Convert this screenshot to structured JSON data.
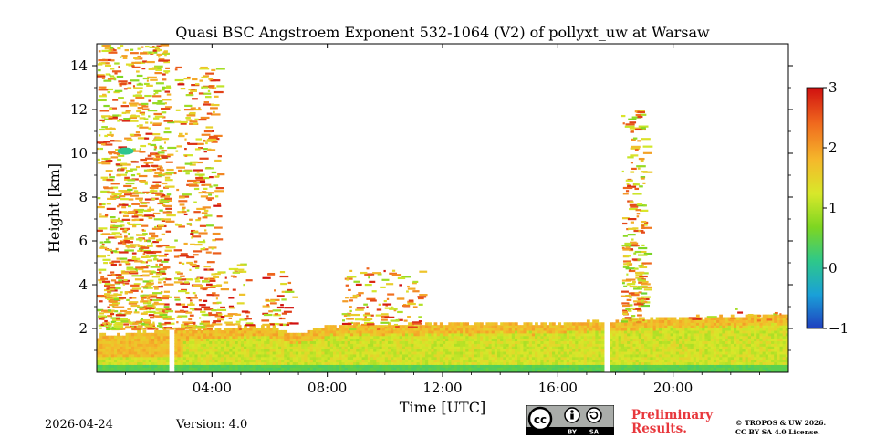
{
  "chart_data": {
    "type": "heatmap",
    "title": "Quasi BSC Angstroem Exponent 532-1064 (V2) of pollyxt_uw at Warsaw",
    "xlabel": "Time [UTC]",
    "ylabel": "Height [km]",
    "xlim_hours": [
      0,
      24
    ],
    "ylim_km": [
      0,
      15
    ],
    "x_ticks": [
      {
        "value": 4,
        "label": "04:00"
      },
      {
        "value": 8,
        "label": "08:00"
      },
      {
        "value": 12,
        "label": "12:00"
      },
      {
        "value": 16,
        "label": "16:00"
      },
      {
        "value": 20,
        "label": "20:00"
      }
    ],
    "y_ticks": [
      {
        "value": 2,
        "label": "2"
      },
      {
        "value": 4,
        "label": "4"
      },
      {
        "value": 6,
        "label": "6"
      },
      {
        "value": 8,
        "label": "8"
      },
      {
        "value": 10,
        "label": "10"
      },
      {
        "value": 12,
        "label": "12"
      },
      {
        "value": 14,
        "label": "14"
      }
    ],
    "colorbar": {
      "range": [
        -1,
        3
      ],
      "ticks": [
        {
          "value": 3,
          "label": "3"
        },
        {
          "value": 2,
          "label": "2"
        },
        {
          "value": 1,
          "label": "1"
        },
        {
          "value": 0,
          "label": "0"
        },
        {
          "value": -1,
          "label": "−1"
        }
      ],
      "colors": [
        "#1f3fbf",
        "#1aa0d8",
        "#2ec88a",
        "#7dd622",
        "#d8e82a",
        "#f5b82b",
        "#f06a1e",
        "#d01010"
      ]
    },
    "boundary_layer_top_km": [
      {
        "t": 0.0,
        "h": 1.6
      },
      {
        "t": 2.5,
        "h": 1.9
      },
      {
        "t": 4.0,
        "h": 1.95
      },
      {
        "t": 6.0,
        "h": 2.05
      },
      {
        "t": 7.0,
        "h": 1.7
      },
      {
        "t": 8.0,
        "h": 2.1
      },
      {
        "t": 10.0,
        "h": 2.1
      },
      {
        "t": 12.0,
        "h": 2.15
      },
      {
        "t": 14.0,
        "h": 2.2
      },
      {
        "t": 16.0,
        "h": 2.2
      },
      {
        "t": 17.6,
        "h": 2.3
      },
      {
        "t": 19.0,
        "h": 2.4
      },
      {
        "t": 22.0,
        "h": 2.5
      },
      {
        "t": 24.0,
        "h": 2.6
      }
    ],
    "data_gaps_hours": [
      [
        2.5,
        2.62
      ],
      [
        17.55,
        17.7
      ]
    ],
    "upper_layers": [
      {
        "t0": 0.0,
        "t1": 2.45,
        "h0": 2.0,
        "h1": 15.0,
        "mean": 1.8,
        "density": 0.55
      },
      {
        "t0": 2.65,
        "t1": 4.2,
        "h0": 2.0,
        "h1": 14.0,
        "mean": 1.9,
        "density": 0.35
      },
      {
        "t0": 4.2,
        "t1": 5.2,
        "h0": 2.0,
        "h1": 5.0,
        "mean": 2.0,
        "density": 0.25
      },
      {
        "t0": 5.7,
        "t1": 6.8,
        "h0": 2.2,
        "h1": 5.0,
        "mean": 2.0,
        "density": 0.25
      },
      {
        "t0": 8.5,
        "t1": 11.2,
        "h0": 2.0,
        "h1": 4.8,
        "mean": 1.9,
        "density": 0.3
      },
      {
        "t0": 18.2,
        "t1": 19.0,
        "h0": 2.3,
        "h1": 12.0,
        "mean": 1.7,
        "density": 0.5
      },
      {
        "t0": 19.5,
        "t1": 24.0,
        "h0": 2.4,
        "h1": 3.0,
        "mean": 2.0,
        "density": 0.1
      }
    ],
    "features": [
      {
        "t": 1.0,
        "h": 10.1,
        "value": 0.1,
        "label": "low-value patch"
      }
    ]
  },
  "footer": {
    "date": "2026-04-24",
    "version": "Version: 4.0",
    "prelim_line1": "Preliminary",
    "prelim_line2": "Results.",
    "copyright_line1": "© TROPOS & UW 2026.",
    "copyright_line2": "CC BY SA 4.0 License.",
    "cc_by": "BY",
    "cc_sa": "SA",
    "prelim_color": "#e8383d"
  }
}
